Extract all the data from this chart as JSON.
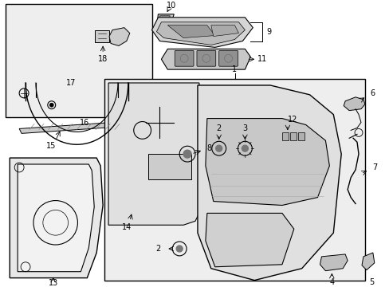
{
  "bg_color": "#ffffff",
  "line_color": "#000000",
  "gray_fill": "#d8d8d8",
  "light_fill": "#eeeeee",
  "figsize": [
    4.89,
    3.6
  ],
  "dpi": 100
}
